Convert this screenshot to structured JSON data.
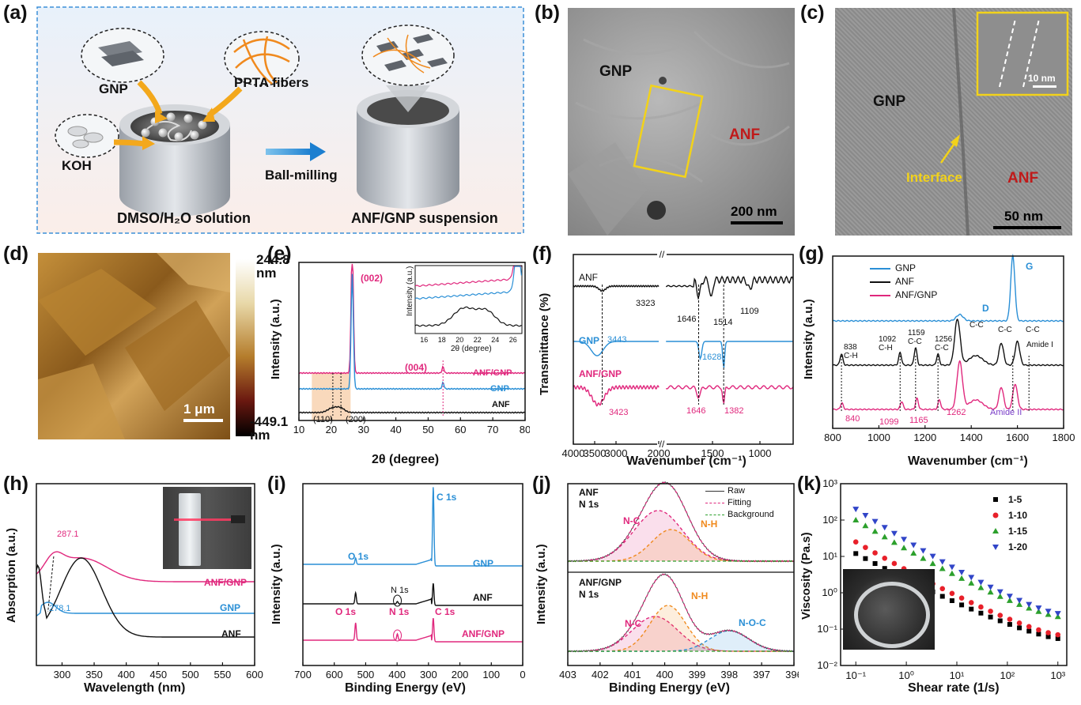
{
  "panels": {
    "a": {
      "label": "(a)",
      "gnp": "GNP",
      "ppta": "PPTA fibers",
      "koh": "KOH",
      "step": "Ball-milling",
      "solution": "DMSO/H₂O solution",
      "suspension": "ANF/GNP suspension"
    },
    "b": {
      "label": "(b)",
      "gnp": "GNP",
      "anf": "ANF",
      "scale": "200 nm"
    },
    "c": {
      "label": "(c)",
      "gnp": "GNP",
      "anf": "ANF",
      "interface": "Interface",
      "scale": "50 nm",
      "inset_scale": "10 nm"
    },
    "d": {
      "label": "(d)",
      "max": "244.8",
      "max_unit": "nm",
      "min": "-449.1",
      "min_unit": "nm",
      "scale": "1 μm"
    },
    "e": {
      "label": "(e)",
      "ylabel": "Intensity (a.u.)",
      "xlabel": "2θ (degree)",
      "peak002": "(002)",
      "peak004": "(004)",
      "peak110": "(110)",
      "peak200": "(200)",
      "inset_ylabel": "Intensity (a.u.)",
      "inset_xlabel": "2θ (degree)"
    },
    "f": {
      "label": "(f)",
      "ylabel": "Transmittance (%)",
      "xlabel": "Wavenumber (cm⁻¹)",
      "p3323": "3323",
      "p1646a": "1646",
      "p1514": "1514",
      "p1109": "1109",
      "p3443": "3443",
      "p1628": "1628",
      "p3423": "3423",
      "p1646b": "1646",
      "p1382": "1382"
    },
    "g": {
      "label": "(g)",
      "ylabel": "Intensity (a.u.)",
      "xlabel": "Wavenumber (cm⁻¹)",
      "D": "D",
      "G": "G",
      "p838": "838",
      "ch1": "C-H",
      "p1092": "1092",
      "ch2": "C-H",
      "p1159": "1159",
      "cc1": "C-C",
      "p1256": "1256",
      "cc2": "C-C",
      "cc3": "C-C",
      "cc4": "C-C",
      "cc5": "C-C",
      "amide1": "Amide I",
      "p840": "840",
      "p1099": "1099",
      "p1165": "1165",
      "p1262": "1262",
      "amide2": "Amide II"
    },
    "h": {
      "label": "(h)",
      "ylabel": "Absorption (a.u.)",
      "xlabel": "Wavelength (nm)",
      "p287": "287.1",
      "p278": "278.1"
    },
    "i": {
      "label": "(i)",
      "ylabel": "Intensity (a.u.)",
      "xlabel": "Binding Energy (eV)",
      "c1s": "C 1s",
      "o1s": "O 1s",
      "n1s": "N 1s",
      "o1s2": "O 1s",
      "n1s2": "N 1s",
      "c1s2": "C 1s"
    },
    "j": {
      "label": "(j)",
      "ylabel": "Intensity (a.u.)",
      "xlabel": "Binding Energy (eV)",
      "top_title1": "ANF",
      "top_title2": "N 1s",
      "bot_title1": "ANF/GNP",
      "bot_title2": "N 1s",
      "nc": "N-C",
      "nh": "N-H",
      "nc2": "N-C",
      "nh2": "N-H",
      "noc": "N-O-C",
      "raw": "Raw",
      "fitting": "Fitting",
      "background": "Background"
    },
    "k": {
      "label": "(k)",
      "ylabel": "Viscosity (Pa.s)",
      "xlabel": "Shear rate (1/s)"
    }
  },
  "chart_data": [
    {
      "id": "e",
      "type": "line",
      "xlabel": "2θ (degree)",
      "ylabel": "Intensity (a.u.)",
      "xlim": [
        10,
        80
      ],
      "xticks": [
        10,
        20,
        30,
        40,
        50,
        60,
        70,
        80
      ],
      "series": [
        {
          "name": "ANF/GNP",
          "color": "#e0287d",
          "peaks": [
            26.5,
            54.6
          ]
        },
        {
          "name": "GNP",
          "color": "#2a8fd6",
          "peaks": [
            26.5,
            54.6
          ]
        },
        {
          "name": "ANF",
          "color": "#111111",
          "peaks": [
            20.5,
            23.0
          ]
        }
      ],
      "inset": {
        "xticks": [
          16,
          18,
          20,
          22,
          24,
          26
        ]
      }
    },
    {
      "id": "f",
      "type": "line",
      "xlabel": "Wavenumber (cm⁻¹)",
      "ylabel": "Transmittance (%)",
      "xticks": [
        4000,
        3500,
        3000,
        2000,
        1500,
        1000
      ],
      "series": [
        {
          "name": "ANF",
          "color": "#111111",
          "peaks": [
            3323,
            1646,
            1514,
            1109
          ]
        },
        {
          "name": "GNP",
          "color": "#2a8fd6",
          "peaks": [
            3443,
            1628
          ]
        },
        {
          "name": "ANF/GNP",
          "color": "#e0287d",
          "peaks": [
            3423,
            1646,
            1382
          ]
        }
      ]
    },
    {
      "id": "g",
      "type": "line",
      "xlabel": "Wavenumber (cm⁻¹)",
      "ylabel": "Intensity (a.u.)",
      "xlim": [
        800,
        1800
      ],
      "xticks": [
        800,
        1000,
        1200,
        1400,
        1600,
        1800
      ],
      "series": [
        {
          "name": "GNP",
          "color": "#2a8fd6",
          "peaks": [
            1350,
            1580
          ]
        },
        {
          "name": "ANF",
          "color": "#111111",
          "peaks": [
            838,
            1092,
            1159,
            1256,
            1340,
            1530,
            1600
          ]
        },
        {
          "name": "ANF/GNP",
          "color": "#e0287d",
          "peaks": [
            840,
            1099,
            1165,
            1262,
            1350,
            1580
          ]
        }
      ]
    },
    {
      "id": "h",
      "type": "line",
      "xlabel": "Wavelength (nm)",
      "ylabel": "Absorption (a.u.)",
      "xlim": [
        260,
        600
      ],
      "xticks": [
        300,
        350,
        400,
        450,
        500,
        550,
        600
      ],
      "series": [
        {
          "name": "ANF/GNP",
          "color": "#e0287d",
          "peaks": [
            287.1,
            330
          ]
        },
        {
          "name": "GNP",
          "color": "#2a8fd6",
          "peaks": [
            278.1
          ]
        },
        {
          "name": "ANF",
          "color": "#111111",
          "peaks": [
            330
          ]
        }
      ]
    },
    {
      "id": "i",
      "type": "line",
      "xlabel": "Binding Energy (eV)",
      "ylabel": "Intensity (a.u.)",
      "xlim": [
        700,
        0
      ],
      "xticks": [
        700,
        600,
        500,
        400,
        300,
        200,
        100,
        0
      ],
      "series": [
        {
          "name": "GNP",
          "color": "#2a8fd6",
          "peaks": [
            284.8,
            532
          ]
        },
        {
          "name": "ANF",
          "color": "#111111",
          "peaks": [
            284.8,
            399,
            532
          ]
        },
        {
          "name": "ANF/GNP",
          "color": "#e0287d",
          "peaks": [
            284.8,
            399,
            532
          ]
        }
      ]
    },
    {
      "id": "j",
      "type": "line",
      "xlabel": "Binding Energy (eV)",
      "ylabel": "Intensity (a.u.)",
      "xlim": [
        403,
        396
      ],
      "xticks": [
        403,
        402,
        401,
        400,
        399,
        398,
        397,
        396
      ],
      "legend": [
        "Raw",
        "Fitting",
        "Background"
      ]
    },
    {
      "id": "k",
      "type": "scatter",
      "xlabel": "Shear rate (1/s)",
      "ylabel": "Viscosity (Pa.s)",
      "xscale": "log",
      "yscale": "log",
      "xlim": [
        0.05,
        1500
      ],
      "ylim": [
        0.01,
        1000
      ],
      "xticks": [
        "10⁻¹",
        "10⁰",
        "10¹",
        "10²",
        "10³"
      ],
      "yticks": [
        "10⁻²",
        "10⁻¹",
        "10⁰",
        "10¹",
        "10²",
        "10³"
      ],
      "series": [
        {
          "name": "1-5",
          "color": "#000000",
          "marker": "square",
          "v01": 12,
          "v1000": 0.055
        },
        {
          "name": "1-10",
          "color": "#e8202a",
          "marker": "circle",
          "v01": 25,
          "v1000": 0.07
        },
        {
          "name": "1-15",
          "color": "#2ca02c",
          "marker": "triangle-up",
          "v01": 100,
          "v1000": 0.22
        },
        {
          "name": "1-20",
          "color": "#3145c8",
          "marker": "triangle-down",
          "v01": 200,
          "v1000": 0.27
        }
      ]
    }
  ]
}
